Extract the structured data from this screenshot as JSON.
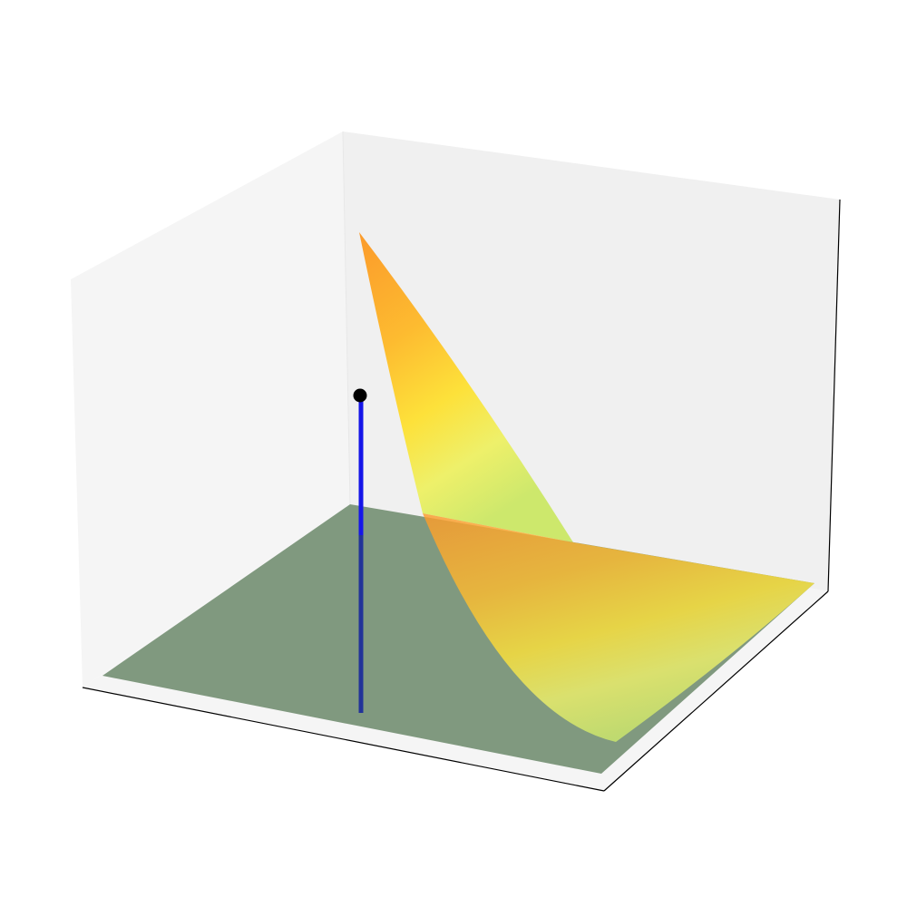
{
  "chart_data": {
    "type": "surface3d",
    "title": "",
    "xlabel": "",
    "ylabel": "",
    "zlabel": "",
    "axes_visible": false,
    "grid": false,
    "surface": {
      "description_colors": [
        "#fb9a2b",
        "#fdd835",
        "#f3f56a",
        "#cde86c"
      ],
      "alpha": 0.85
    },
    "plane": {
      "color": "#80997f"
    },
    "stem": {
      "color": "#1515e8",
      "marker_color": "#000000"
    },
    "colors": {
      "pane_left": "#f5f5f5",
      "pane_back": "#f0f0f0",
      "pane_floor": "#f5f5f5",
      "axis_line": "#000000"
    }
  }
}
